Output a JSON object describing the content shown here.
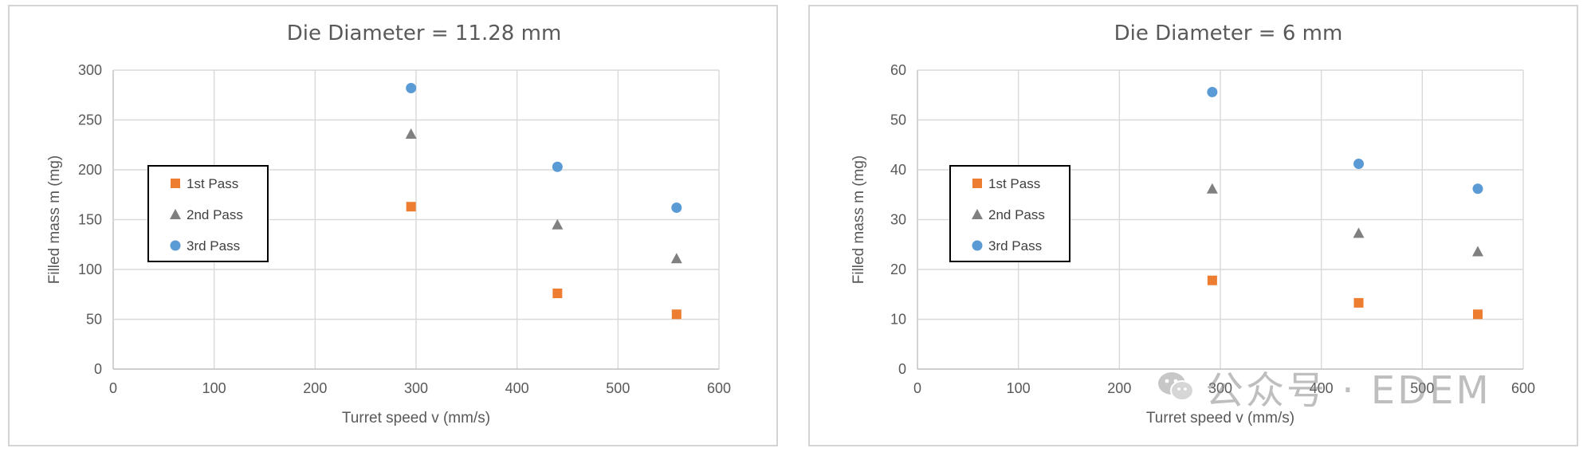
{
  "chart_data": [
    {
      "type": "scatter",
      "title": "Die Diameter = 11.28 mm",
      "xlabel": "Turret speed v (mm/s)",
      "ylabel": "Filled mass  m (mg)",
      "xlim": [
        0,
        600
      ],
      "ylim": [
        0,
        300
      ],
      "x_ticks": [
        "0",
        "100",
        "200",
        "300",
        "400",
        "500",
        "600"
      ],
      "y_ticks": [
        "0",
        "50",
        "100",
        "150",
        "200",
        "250",
        "300"
      ],
      "grid": true,
      "legend_position": "left",
      "series": [
        {
          "name": "1st Pass",
          "marker": "square",
          "color": "#ed7d31",
          "points": [
            {
              "x": 295,
              "y": 163
            },
            {
              "x": 440,
              "y": 76
            },
            {
              "x": 558,
              "y": 55
            }
          ]
        },
        {
          "name": "2nd Pass",
          "marker": "triangle",
          "color": "#808080",
          "points": [
            {
              "x": 295,
              "y": 236
            },
            {
              "x": 440,
              "y": 145
            },
            {
              "x": 558,
              "y": 111
            }
          ]
        },
        {
          "name": "3rd Pass",
          "marker": "circle",
          "color": "#5b9bd5",
          "points": [
            {
              "x": 295,
              "y": 282
            },
            {
              "x": 440,
              "y": 203
            },
            {
              "x": 558,
              "y": 162
            }
          ]
        }
      ]
    },
    {
      "type": "scatter",
      "title": "Die Diameter = 6 mm",
      "xlabel": "Turret speed v (mm/s)",
      "ylabel": "Filled mass m  (mg)",
      "xlim": [
        0,
        600
      ],
      "ylim": [
        0,
        60
      ],
      "x_ticks": [
        "0",
        "100",
        "200",
        "300",
        "400",
        "500",
        "600"
      ],
      "y_ticks": [
        "0",
        "10",
        "20",
        "30",
        "40",
        "50",
        "60"
      ],
      "grid": true,
      "legend_position": "left",
      "series": [
        {
          "name": "1st Pass",
          "marker": "square",
          "color": "#ed7d31",
          "points": [
            {
              "x": 292,
              "y": 17.8
            },
            {
              "x": 437,
              "y": 13.3
            },
            {
              "x": 555,
              "y": 11
            }
          ]
        },
        {
          "name": "2nd Pass",
          "marker": "triangle",
          "color": "#808080",
          "points": [
            {
              "x": 292,
              "y": 36.2
            },
            {
              "x": 437,
              "y": 27.3
            },
            {
              "x": 555,
              "y": 23.6
            }
          ]
        },
        {
          "name": "3rd Pass",
          "marker": "circle",
          "color": "#5b9bd5",
          "points": [
            {
              "x": 292,
              "y": 55.6
            },
            {
              "x": 437,
              "y": 41.2
            },
            {
              "x": 555,
              "y": 36.2
            }
          ]
        }
      ]
    }
  ],
  "watermark": {
    "icon": "wechat-icon",
    "text": "公众号 · EDEM"
  }
}
